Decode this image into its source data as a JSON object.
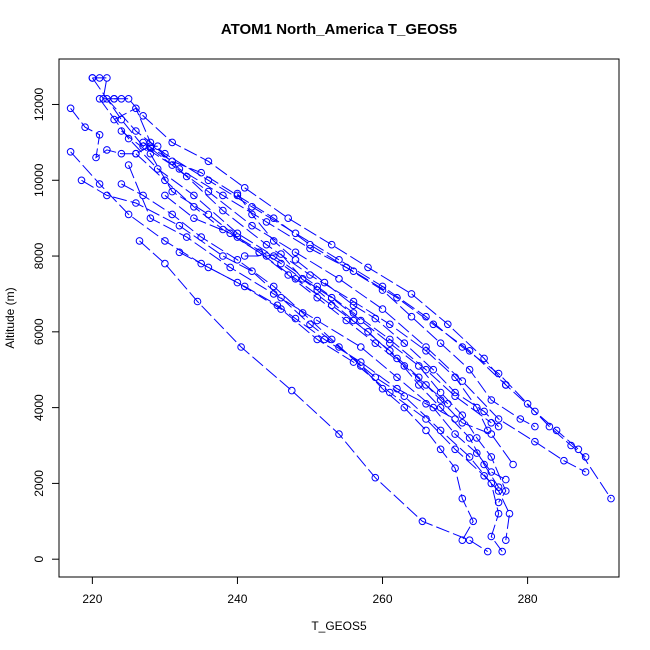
{
  "chart_data": {
    "type": "scatter",
    "title": "ATOM1 North_America T_GEOS5",
    "xlabel": "T_GEOS5",
    "ylabel": "Altitude (m)",
    "xlim": [
      215.4,
      292.6
    ],
    "ylim": [
      -470,
      13200
    ],
    "xticks": [
      220,
      240,
      260,
      280
    ],
    "yticks": [
      0,
      2000,
      4000,
      6000,
      8000,
      10000,
      12000
    ],
    "grid": false,
    "legend": "none",
    "marker": "open-circle",
    "connected": true,
    "series_color": "#0000ff",
    "series": [
      {
        "points": [
          [
            220.0,
            12700
          ],
          [
            221.0,
            12700
          ],
          [
            222.0,
            12700
          ],
          [
            221.5,
            12150
          ],
          [
            223.0,
            12150
          ],
          [
            224.0,
            12150
          ]
        ]
      },
      {
        "points": [
          [
            217.0,
            11900
          ],
          [
            219.0,
            11400
          ],
          [
            221.0,
            11200
          ],
          [
            220.5,
            10600
          ],
          [
            222.0,
            10800
          ],
          [
            224.0,
            10700
          ],
          [
            226.0,
            10700
          ],
          [
            228.0,
            10900
          ],
          [
            229.0,
            10900
          ]
        ]
      },
      {
        "points": [
          [
            218.5,
            10000
          ],
          [
            222.0,
            9600
          ],
          [
            226.0,
            9400
          ],
          [
            232.0,
            8800
          ],
          [
            238.0,
            8000
          ],
          [
            242.0,
            7600
          ],
          [
            246.0,
            6900
          ],
          [
            250.0,
            6200
          ],
          [
            254.0,
            5600
          ],
          [
            259.0,
            4800
          ],
          [
            263.0,
            4300
          ],
          [
            268.0,
            3400
          ],
          [
            272.0,
            2700
          ],
          [
            275.0,
            2000
          ],
          [
            276.0,
            1200
          ],
          [
            275.0,
            600
          ],
          [
            276.5,
            200
          ]
        ]
      },
      {
        "points": [
          [
            217.0,
            10750
          ],
          [
            221.0,
            9900
          ],
          [
            225.0,
            9100
          ],
          [
            230.0,
            8400
          ],
          [
            235.0,
            7800
          ],
          [
            240.0,
            7300
          ],
          [
            246.0,
            6600
          ],
          [
            251.0,
            5800
          ],
          [
            256.0,
            5200
          ],
          [
            261.0,
            4400
          ],
          [
            266.0,
            3700
          ],
          [
            270.0,
            2900
          ],
          [
            274.0,
            2200
          ],
          [
            276.0,
            1800
          ],
          [
            277.5,
            1200
          ],
          [
            277.0,
            500
          ]
        ]
      },
      {
        "points": [
          [
            220.0,
            12700
          ],
          [
            224.0,
            11600
          ],
          [
            227.0,
            10900
          ],
          [
            231.0,
            10400
          ],
          [
            236.0,
            9700
          ],
          [
            242.0,
            8800
          ],
          [
            248.0,
            8100
          ],
          [
            254.0,
            7400
          ],
          [
            260.0,
            6600
          ],
          [
            266.0,
            5600
          ],
          [
            271.0,
            4700
          ],
          [
            276.0,
            3700
          ],
          [
            281.0,
            3100
          ],
          [
            285.0,
            2600
          ],
          [
            288.0,
            2300
          ]
        ]
      },
      {
        "points": [
          [
            221.0,
            12150
          ],
          [
            225.0,
            11100
          ],
          [
            229.0,
            10300
          ],
          [
            234.0,
            9600
          ],
          [
            240.0,
            8600
          ],
          [
            245.0,
            8000
          ],
          [
            251.0,
            7200
          ],
          [
            256.0,
            6500
          ],
          [
            261.0,
            5800
          ],
          [
            266.0,
            5000
          ],
          [
            270.0,
            4300
          ],
          [
            275.0,
            3600
          ]
        ]
      },
      {
        "points": [
          [
            222.0,
            12150
          ],
          [
            226.0,
            11300
          ],
          [
            230.0,
            10700
          ],
          [
            236.0,
            10000
          ],
          [
            242.0,
            9300
          ],
          [
            248.0,
            8600
          ],
          [
            254.0,
            7900
          ],
          [
            260.0,
            7200
          ],
          [
            266.0,
            6400
          ],
          [
            271.0,
            5600
          ],
          [
            276.0,
            4900
          ],
          [
            280.0,
            4100
          ],
          [
            283.0,
            3500
          ],
          [
            286.0,
            3000
          ],
          [
            288.0,
            2700
          ]
        ]
      },
      {
        "points": [
          [
            223.0,
            11600
          ],
          [
            226.0,
            11900
          ],
          [
            228.0,
            11000
          ],
          [
            232.0,
            10300
          ],
          [
            238.0,
            9600
          ],
          [
            244.0,
            8900
          ],
          [
            250.0,
            8200
          ],
          [
            256.0,
            7600
          ],
          [
            262.0,
            6900
          ],
          [
            267.0,
            6200
          ],
          [
            272.0,
            5500
          ],
          [
            277.0,
            4600
          ],
          [
            281.0,
            3900
          ],
          [
            284.0,
            3400
          ],
          [
            287.0,
            2900
          ],
          [
            291.5,
            1600
          ]
        ]
      },
      {
        "points": [
          [
            223.0,
            12150
          ],
          [
            225.0,
            12150
          ],
          [
            227.0,
            11700
          ],
          [
            231.0,
            11000
          ],
          [
            236.0,
            10500
          ],
          [
            241.0,
            9800
          ],
          [
            247.0,
            9000
          ],
          [
            253.0,
            8300
          ],
          [
            258.0,
            7700
          ],
          [
            264.0,
            7000
          ],
          [
            269.0,
            6200
          ],
          [
            274.0,
            5300
          ],
          [
            277.0,
            4600
          ]
        ]
      },
      {
        "points": [
          [
            224.0,
            11300
          ],
          [
            228.0,
            10700
          ],
          [
            231.0,
            9700
          ],
          [
            236.0,
            9100
          ],
          [
            240.0,
            8500
          ],
          [
            246.0,
            7800
          ],
          [
            251.0,
            7100
          ],
          [
            256.0,
            6300
          ],
          [
            261.0,
            5500
          ],
          [
            265.0,
            4800
          ],
          [
            268.0,
            4200
          ],
          [
            271.0,
            3600
          ],
          [
            275.0,
            3300
          ],
          [
            278.0,
            2500
          ]
        ]
      },
      {
        "points": [
          [
            226.5,
            8400
          ],
          [
            230.0,
            7800
          ],
          [
            234.5,
            6800
          ],
          [
            240.5,
            5600
          ],
          [
            247.5,
            4450
          ],
          [
            254.0,
            3300
          ],
          [
            259.0,
            2150
          ],
          [
            265.5,
            1000
          ],
          [
            272.0,
            500
          ],
          [
            274.5,
            200
          ]
        ]
      },
      {
        "points": [
          [
            224.0,
            9900
          ],
          [
            227.0,
            9600
          ],
          [
            231.0,
            9100
          ],
          [
            235.0,
            8500
          ],
          [
            240.0,
            7900
          ],
          [
            245.0,
            7200
          ],
          [
            249.0,
            6500
          ],
          [
            253.0,
            5800
          ],
          [
            257.0,
            5100
          ],
          [
            260.0,
            4500
          ],
          [
            263.0,
            4000
          ],
          [
            266.0,
            3400
          ],
          [
            268.0,
            2900
          ],
          [
            270.0,
            2400
          ],
          [
            271.0,
            1600
          ],
          [
            272.5,
            1000
          ],
          [
            271.0,
            500
          ]
        ]
      },
      {
        "points": [
          [
            225.0,
            10400
          ],
          [
            228.0,
            9000
          ],
          [
            233.0,
            8500
          ],
          [
            239.0,
            7700
          ],
          [
            245.0,
            7000
          ],
          [
            251.0,
            6300
          ],
          [
            257.0,
            5600
          ],
          [
            262.0,
            4800
          ],
          [
            267.0,
            4000
          ],
          [
            270.0,
            3300
          ],
          [
            273.0,
            2800
          ],
          [
            275.0,
            2300
          ],
          [
            277.0,
            2100
          ]
        ]
      },
      {
        "points": [
          [
            226.0,
            10700
          ],
          [
            230.0,
            10000
          ],
          [
            234.0,
            9300
          ],
          [
            238.0,
            8700
          ],
          [
            243.0,
            8100
          ],
          [
            248.0,
            7400
          ],
          [
            253.0,
            6700
          ],
          [
            258.0,
            6000
          ],
          [
            262.0,
            5300
          ],
          [
            265.0,
            4600
          ],
          [
            268.0,
            4000
          ],
          [
            272.0,
            3200
          ],
          [
            274.0,
            2500
          ],
          [
            276.0,
            1900
          ]
        ]
      },
      {
        "points": [
          [
            227.0,
            11000
          ],
          [
            231.0,
            10500
          ],
          [
            235.0,
            10200
          ],
          [
            240.0,
            9600
          ],
          [
            245.0,
            9000
          ],
          [
            250.0,
            8300
          ],
          [
            255.0,
            7700
          ],
          [
            260.0,
            7100
          ],
          [
            264.0,
            6400
          ],
          [
            268.0,
            5700
          ],
          [
            272.0,
            5000
          ],
          [
            275.0,
            4200
          ],
          [
            279.0,
            3700
          ],
          [
            281.0,
            3500
          ]
        ]
      },
      {
        "points": [
          [
            228.0,
            10850
          ],
          [
            233.0,
            10100
          ],
          [
            238.0,
            9200
          ],
          [
            244.0,
            8300
          ],
          [
            250.0,
            7500
          ],
          [
            256.0,
            6800
          ],
          [
            261.0,
            6200
          ],
          [
            266.0,
            5500
          ],
          [
            270.0,
            4800
          ],
          [
            273.0,
            4000
          ],
          [
            274.5,
            3400
          ]
        ]
      },
      {
        "points": [
          [
            240.0,
            9650
          ],
          [
            242.0,
            9100
          ],
          [
            245.0,
            8400
          ],
          [
            248.0,
            7900
          ],
          [
            252.0,
            7300
          ],
          [
            256.0,
            6700
          ],
          [
            259.0,
            6350
          ],
          [
            263.0,
            5700
          ],
          [
            267.0,
            5000
          ],
          [
            270.0,
            4400
          ],
          [
            274.0,
            3900
          ],
          [
            276.0,
            3500
          ]
        ]
      },
      {
        "points": [
          [
            241.0,
            8000
          ],
          [
            244.0,
            8000
          ],
          [
            246.0,
            8050
          ],
          [
            249.0,
            7400
          ],
          [
            253.0,
            6900
          ],
          [
            257.0,
            6300
          ],
          [
            261.0,
            5700
          ],
          [
            265.0,
            5100
          ],
          [
            268.0,
            4400
          ],
          [
            271.0,
            3800
          ],
          [
            273.0,
            3200
          ],
          [
            275.0,
            2700
          ],
          [
            277.0,
            1800
          ],
          [
            276.0,
            1500
          ]
        ]
      },
      {
        "points": [
          [
            232.0,
            8100
          ],
          [
            236.0,
            7700
          ],
          [
            241.0,
            7200
          ],
          [
            245.5,
            6700
          ],
          [
            248.0,
            6350
          ],
          [
            252.0,
            5800
          ],
          [
            257.0,
            5200
          ],
          [
            262.0,
            4500
          ],
          [
            266.0,
            4100
          ],
          [
            270.0,
            3700
          ]
        ]
      },
      {
        "points": [
          [
            230.0,
            9600
          ],
          [
            234.0,
            9000
          ],
          [
            239.0,
            8600
          ],
          [
            243.0,
            8100
          ],
          [
            247.0,
            7500
          ],
          [
            251.0,
            6900
          ],
          [
            255.0,
            6300
          ],
          [
            259.0,
            5700
          ],
          [
            263.0,
            5100
          ],
          [
            266.0,
            4600
          ],
          [
            269.0,
            4100
          ]
        ]
      }
    ]
  }
}
